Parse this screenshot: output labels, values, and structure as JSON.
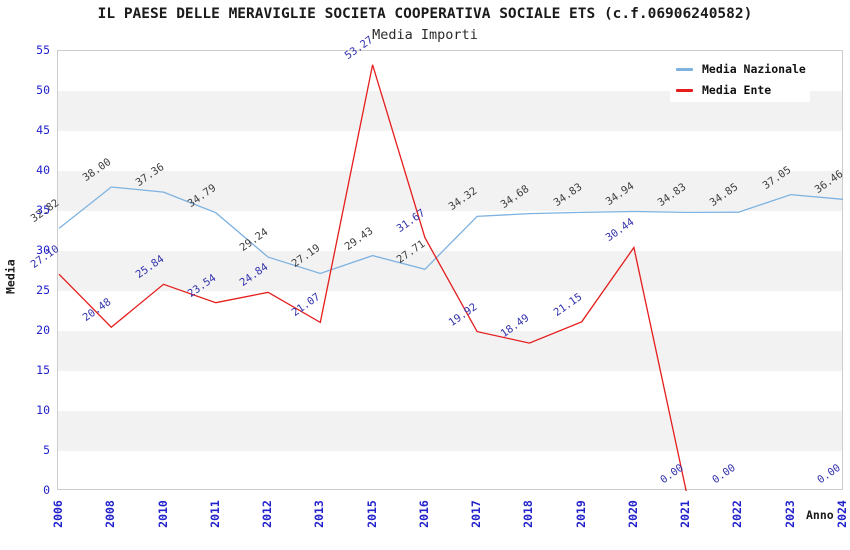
{
  "title": "IL PAESE DELLE MERAVIGLIE SOCIETA COOPERATIVA SOCIALE ETS (c.f.06906240582)",
  "subtitle": "Media Importi",
  "axes": {
    "x_label": "Anno",
    "y_label": "Media",
    "y_ticks": [
      0,
      5,
      10,
      15,
      20,
      25,
      30,
      35,
      40,
      45,
      50,
      55
    ],
    "tick_color": "#2222cc"
  },
  "legend": {
    "position": "top-right",
    "items": [
      "Media Nazionale",
      "Media Ente"
    ]
  },
  "chart_data": {
    "type": "line",
    "title": "IL PAESE DELLE MERAVIGLIE SOCIETA COOPERATIVA SOCIALE ETS (c.f.06906240582)",
    "subtitle": "Media Importi",
    "xlabel": "Anno",
    "ylabel": "Media",
    "ylim": [
      0,
      55
    ],
    "y_tick_step": 5,
    "grid_bands": true,
    "legend_position": "top-right",
    "categories": [
      "2006",
      "2008",
      "2010",
      "2011",
      "2012",
      "2013",
      "2015",
      "2016",
      "2017",
      "2018",
      "2019",
      "2020",
      "2021",
      "2022",
      "2023",
      "2024"
    ],
    "series": [
      {
        "name": "Media Nazionale",
        "color": "#7eb2e1",
        "label_color": "#3f3f3f",
        "values": [
          32.82,
          38.0,
          37.36,
          34.79,
          29.24,
          27.19,
          29.43,
          27.71,
          34.32,
          34.68,
          34.83,
          34.94,
          34.83,
          34.85,
          37.05,
          36.46
        ]
      },
      {
        "name": "Media Ente",
        "color": "#e51d1d",
        "label_color": "#3232ae",
        "values": [
          27.1,
          20.48,
          25.84,
          23.54,
          24.84,
          21.07,
          53.27,
          31.67,
          19.92,
          18.49,
          21.15,
          30.44,
          0.0,
          0.0,
          null,
          0.0
        ]
      }
    ]
  }
}
